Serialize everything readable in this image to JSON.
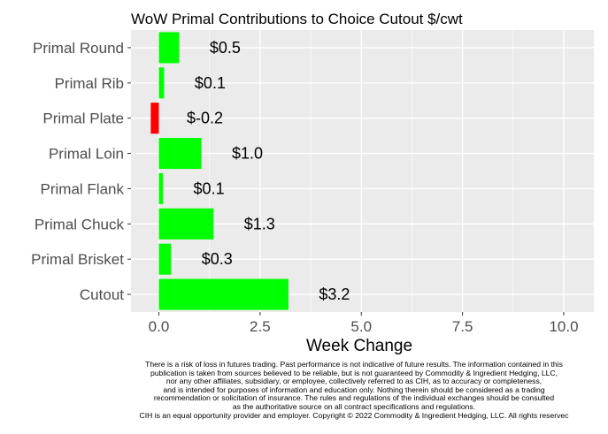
{
  "chart_data": {
    "type": "bar",
    "orientation": "horizontal",
    "title": "WoW Primal Contributions to Choice Cutout $/cwt",
    "xlabel": "Week Change",
    "ylabel": "",
    "xlim": [
      -0.7,
      10.5
    ],
    "xticks": [
      0,
      2.5,
      5,
      7.5,
      10
    ],
    "xtick_labels": [
      "0.0",
      "2.5",
      "5.0",
      "7.5",
      "10.0"
    ],
    "grid": true,
    "categories": [
      "Primal Round",
      "Primal Rib",
      "Primal Plate",
      "Primal Loin",
      "Primal Flank",
      "Primal Chuck",
      "Primal Brisket",
      "Cutout"
    ],
    "values": [
      0.5,
      0.13,
      -0.2,
      1.05,
      0.1,
      1.35,
      0.3,
      3.2
    ],
    "data_labels": [
      "$0.5",
      "$0.1",
      "$-0.2",
      "$1.0",
      "$0.1",
      "$1.3",
      "$0.3",
      "$3.2"
    ],
    "colors": {
      "positive": "#00ff00",
      "negative": "#ff0000",
      "panel": "#ebebeb",
      "grid": "#ffffff"
    }
  },
  "disclaimer": [
    "There is a risk of loss in futures trading. Past performance is not indicative of future results. The information contained in this",
    "publication is taken from sources believed to be reliable, but is not guaranteed by Commodity & Ingredient Hedging, LLC,",
    "nor any other affiliates, subsidiary, or employee, collectively referred to as CIH, as to accuracy or completeness,",
    "and is intended for purposes of information and education only. Nothing therein should be considered as a trading",
    "recommendation or solicitation of insurance. The rules and regulations of the individual exchanges should be consulted",
    "as the authoritative source on all contract specifications and regulations.",
    "CIH is an equal opportunity provider and employer. Copyright © 2022 Commodity & Ingredient Hedging, LLC. All rights reservec"
  ]
}
